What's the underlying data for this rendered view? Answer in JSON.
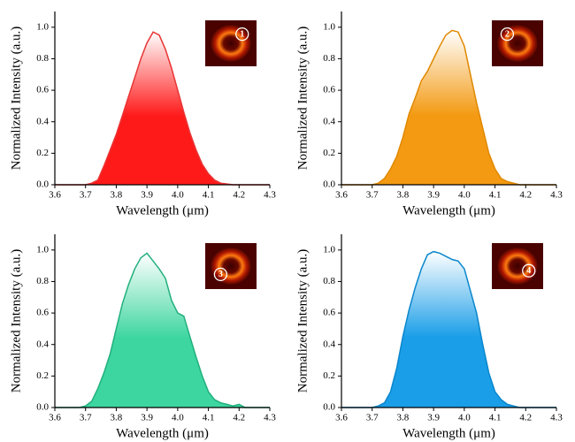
{
  "chart_data": [
    {
      "type": "area",
      "color": "#ff1a1a",
      "line_color": "#e83535",
      "inset_label": "1",
      "x_label": "Wavelength (μm)",
      "y_label": "Normalized Intensity (a.u.)",
      "xlim": [
        3.6,
        4.3
      ],
      "ylim": [
        0,
        1.1
      ],
      "xticks": [
        3.6,
        3.7,
        3.8,
        3.9,
        {
          "value": 4,
          "label": "4.0"
        },
        4.1,
        4.2,
        4.3
      ],
      "yticks": [
        {
          "value": 0,
          "label": "0.0"
        },
        0.2,
        0.4,
        0.6,
        0.8,
        {
          "value": 1,
          "label": "1.0"
        }
      ],
      "x": [
        3.6,
        3.62,
        3.64,
        3.66,
        3.68,
        3.7,
        3.72,
        3.74,
        3.76,
        3.78,
        3.8,
        3.82,
        3.84,
        3.86,
        3.88,
        3.9,
        3.92,
        3.94,
        3.96,
        3.98,
        4,
        4.02,
        4.04,
        4.06,
        4.08,
        4.1,
        4.12,
        4.14,
        4.16,
        4.18,
        4.2,
        4.22,
        4.24,
        4.26,
        4.28,
        4.3
      ],
      "values": [
        0,
        0,
        0,
        0,
        0,
        0,
        0.01,
        0.03,
        0.12,
        0.22,
        0.32,
        0.44,
        0.56,
        0.68,
        0.8,
        0.9,
        0.97,
        0.95,
        0.86,
        0.74,
        0.6,
        0.46,
        0.33,
        0.22,
        0.13,
        0.07,
        0.03,
        0.01,
        0.005,
        0,
        0,
        0,
        0,
        0,
        0,
        0
      ]
    },
    {
      "type": "area",
      "color": "#f39a12",
      "line_color": "#e08800",
      "inset_label": "2",
      "x_label": "Wavelength (μm)",
      "y_label": "Normalized Intensity (a.u.)",
      "xlim": [
        3.6,
        4.3
      ],
      "ylim": [
        0,
        1.1
      ],
      "xticks": [
        3.6,
        3.7,
        3.8,
        3.9,
        {
          "value": 4,
          "label": "4.0"
        },
        4.1,
        4.2,
        4.3
      ],
      "yticks": [
        {
          "value": 0,
          "label": "0.0"
        },
        0.2,
        0.4,
        0.6,
        0.8,
        {
          "value": 1,
          "label": "1.0"
        }
      ],
      "x": [
        3.6,
        3.62,
        3.64,
        3.66,
        3.68,
        3.7,
        3.72,
        3.74,
        3.76,
        3.78,
        3.8,
        3.82,
        3.84,
        3.86,
        3.88,
        3.9,
        3.92,
        3.94,
        3.96,
        3.98,
        4,
        4.02,
        4.04,
        4.06,
        4.08,
        4.1,
        4.12,
        4.14,
        4.16,
        4.18,
        4.2,
        4.22,
        4.24,
        4.26,
        4.28,
        4.3
      ],
      "values": [
        0,
        0,
        0,
        0,
        0,
        0,
        0.01,
        0.04,
        0.1,
        0.18,
        0.3,
        0.45,
        0.55,
        0.66,
        0.72,
        0.8,
        0.88,
        0.95,
        0.98,
        0.97,
        0.88,
        0.7,
        0.52,
        0.36,
        0.2,
        0.1,
        0.04,
        0.02,
        0.01,
        0,
        0,
        0,
        0,
        0,
        0,
        0
      ]
    },
    {
      "type": "area",
      "color": "#3dd6a0",
      "line_color": "#22b07d",
      "inset_label": "3",
      "x_label": "Wavelength (μm)",
      "y_label": "Normalized Intensity (a.u.)",
      "xlim": [
        3.6,
        4.3
      ],
      "ylim": [
        0,
        1.1
      ],
      "xticks": [
        3.6,
        3.7,
        3.8,
        3.9,
        {
          "value": 4,
          "label": "4.0"
        },
        4.1,
        4.2,
        4.3
      ],
      "yticks": [
        {
          "value": 0,
          "label": "0.0"
        },
        0.2,
        0.4,
        0.6,
        0.8,
        {
          "value": 1,
          "label": "1.0"
        }
      ],
      "x": [
        3.6,
        3.62,
        3.64,
        3.66,
        3.68,
        3.7,
        3.72,
        3.74,
        3.76,
        3.78,
        3.8,
        3.82,
        3.84,
        3.86,
        3.88,
        3.9,
        3.92,
        3.94,
        3.96,
        3.98,
        4,
        4.02,
        4.04,
        4.06,
        4.08,
        4.1,
        4.12,
        4.14,
        4.16,
        4.18,
        4.2,
        4.22,
        4.24,
        4.26,
        4.28,
        4.3
      ],
      "values": [
        0,
        0,
        0,
        0,
        0,
        0.01,
        0.04,
        0.12,
        0.22,
        0.34,
        0.5,
        0.66,
        0.78,
        0.88,
        0.95,
        0.98,
        0.93,
        0.88,
        0.82,
        0.68,
        0.6,
        0.58,
        0.45,
        0.32,
        0.2,
        0.1,
        0.05,
        0.03,
        0.02,
        0.01,
        0.02,
        0,
        0,
        0,
        0,
        0
      ]
    },
    {
      "type": "area",
      "color": "#1a9ee8",
      "line_color": "#0a86cc",
      "inset_label": "4",
      "x_label": "Wavelength (μm)",
      "y_label": "Normalized Intensity (a.u.)",
      "xlim": [
        3.6,
        4.3
      ],
      "ylim": [
        0,
        1.1
      ],
      "xticks": [
        3.6,
        3.7,
        3.8,
        3.9,
        {
          "value": 4,
          "label": "4.0"
        },
        4.1,
        4.2,
        4.3
      ],
      "yticks": [
        {
          "value": 0,
          "label": "0.0"
        },
        0.2,
        0.4,
        0.6,
        0.8,
        {
          "value": 1,
          "label": "1.0"
        }
      ],
      "x": [
        3.6,
        3.62,
        3.64,
        3.66,
        3.68,
        3.7,
        3.72,
        3.74,
        3.76,
        3.78,
        3.8,
        3.82,
        3.84,
        3.86,
        3.88,
        3.9,
        3.92,
        3.94,
        3.96,
        3.98,
        4,
        4.02,
        4.04,
        4.06,
        4.08,
        4.1,
        4.12,
        4.14,
        4.16,
        4.18,
        4.2,
        4.22,
        4.24,
        4.26,
        4.28,
        4.3
      ],
      "values": [
        0,
        0,
        0,
        0,
        0,
        0,
        0.01,
        0.03,
        0.1,
        0.25,
        0.45,
        0.62,
        0.76,
        0.88,
        0.97,
        0.99,
        0.98,
        0.96,
        0.94,
        0.93,
        0.88,
        0.74,
        0.6,
        0.4,
        0.22,
        0.1,
        0.05,
        0.02,
        0.01,
        0,
        0,
        0,
        0,
        0,
        0,
        0
      ]
    }
  ]
}
